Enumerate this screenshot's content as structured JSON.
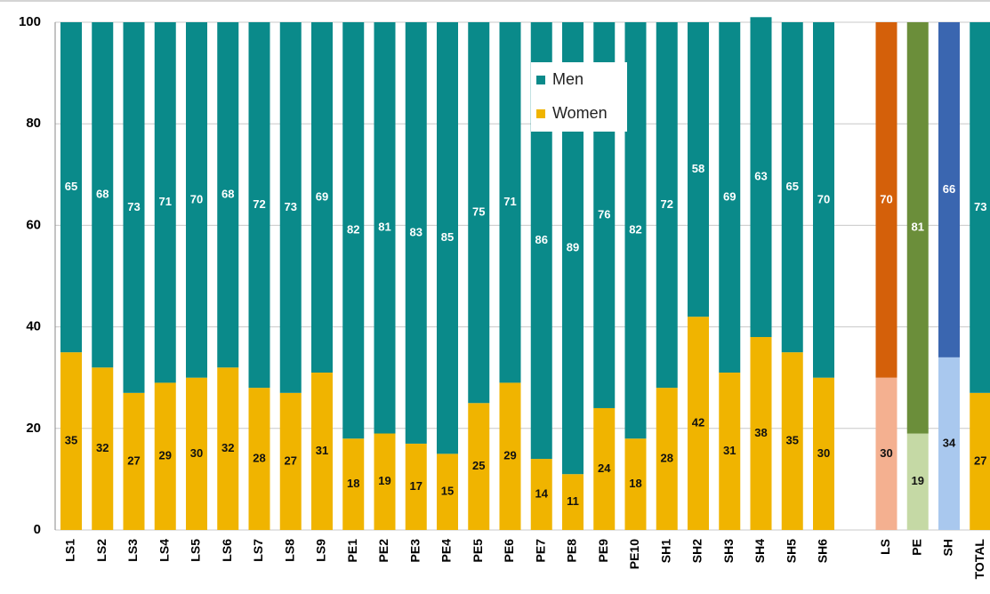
{
  "chart_data": {
    "type": "stacked_bar",
    "categories": [
      "LS1",
      "LS2",
      "LS3",
      "LS4",
      "LS5",
      "LS6",
      "LS7",
      "LS8",
      "LS9",
      "PE1",
      "PE2",
      "PE3",
      "PE4",
      "PE5",
      "PE6",
      "PE7",
      "PE8",
      "PE9",
      "PE10",
      "SH1",
      "SH2",
      "SH3",
      "SH4",
      "SH5",
      "SH6",
      null,
      "LS",
      "PE",
      "SH",
      "TOTAL"
    ],
    "series": [
      {
        "name": "Women",
        "color": "#f0b400",
        "point_colors": {
          "26": "#f4b090",
          "27": "#c5d9a5",
          "28": "#a9c8ee"
        },
        "values": [
          35,
          32,
          27,
          29,
          30,
          32,
          28,
          27,
          31,
          18,
          19,
          17,
          15,
          25,
          29,
          14,
          11,
          24,
          18,
          28,
          42,
          31,
          38,
          35,
          30,
          null,
          30,
          19,
          34,
          27
        ]
      },
      {
        "name": "Men",
        "color": "#0a8a8a",
        "point_colors": {
          "26": "#d4600a",
          "27": "#6b8e3a",
          "28": "#3a66b0"
        },
        "values": [
          65,
          68,
          73,
          71,
          70,
          68,
          72,
          73,
          69,
          82,
          81,
          83,
          85,
          75,
          71,
          86,
          89,
          76,
          82,
          72,
          58,
          69,
          63,
          65,
          70,
          null,
          70,
          81,
          66,
          73
        ]
      }
    ],
    "ylim": [
      0,
      100
    ],
    "yticks": [
      0,
      20,
      40,
      60,
      80,
      100
    ],
    "grid": true,
    "legend": "top-center"
  }
}
